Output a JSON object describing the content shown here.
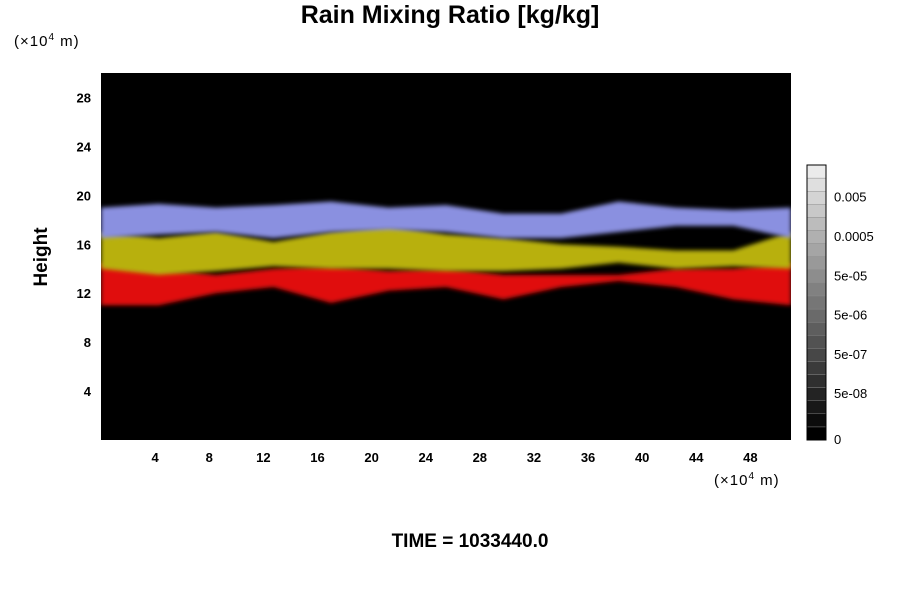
{
  "chart_data": {
    "type": "heatmap",
    "title": "Rain Mixing Ratio [kg/kg]",
    "ylabel": "Height",
    "xlabel": "",
    "unit_prefix": "(×10",
    "unit_exp": "4",
    "unit_suffix": " m)",
    "footer": "TIME = 1033440.0",
    "xlim": [
      0,
      51
    ],
    "ylim": [
      0,
      30
    ],
    "x_ticks": [
      4,
      8,
      12,
      16,
      20,
      24,
      28,
      32,
      36,
      40,
      44,
      48
    ],
    "y_ticks": [
      4,
      8,
      12,
      16,
      20,
      24,
      28
    ],
    "colorbar": {
      "levels": 21,
      "labels": [
        "0",
        "5e-08",
        "5e-07",
        "5e-06",
        "5e-05",
        "0.0005",
        "0.005"
      ],
      "label_levels": [
        0,
        3,
        6,
        9,
        12,
        15,
        18
      ]
    },
    "bands": [
      {
        "name": "red",
        "color": "#e01008",
        "ybottom": [
          11.0,
          11.0,
          12.0,
          12.5,
          11.2,
          12.2,
          12.5,
          11.5,
          12.5,
          13.0,
          12.5,
          11.5,
          11.0
        ],
        "ytop": [
          14.5,
          14.0,
          13.5,
          14.0,
          14.2,
          13.8,
          14.0,
          13.5,
          13.5,
          13.5,
          14.0,
          14.0,
          14.5
        ]
      },
      {
        "name": "yellow",
        "color": "#b8b008",
        "ybottom": [
          14.0,
          13.5,
          13.8,
          14.2,
          14.0,
          14.0,
          13.8,
          13.8,
          14.0,
          14.5,
          14.0,
          14.2,
          14.0
        ],
        "ytop": [
          17.0,
          16.5,
          17.0,
          16.2,
          17.0,
          17.5,
          16.8,
          16.5,
          16.0,
          15.8,
          15.5,
          15.5,
          17.0
        ]
      },
      {
        "name": "blue",
        "color": "#8a90e0",
        "ybottom": [
          16.5,
          16.8,
          17.0,
          16.5,
          17.0,
          17.2,
          17.0,
          16.5,
          16.5,
          17.0,
          17.5,
          17.5,
          16.5
        ],
        "ytop": [
          19.0,
          19.3,
          19.0,
          19.2,
          19.5,
          19.0,
          19.2,
          18.5,
          18.5,
          19.5,
          19.0,
          18.8,
          19.0
        ]
      }
    ]
  }
}
